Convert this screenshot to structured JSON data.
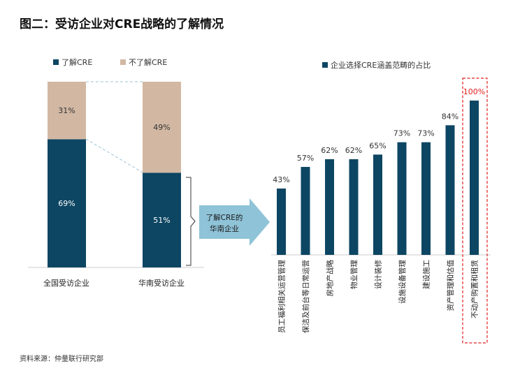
{
  "title": "图二：受访企业对CRE战略的了解情况",
  "source": "资料来源：仲量联行研究部",
  "colors": {
    "dark": "#0d4663",
    "light": "#d2b8a3",
    "arrow": "#8fc3d8",
    "highlight": "#e02020"
  },
  "chart_data": [
    {
      "type": "bar",
      "stacked": true,
      "categories": [
        "全国受访企业",
        "华南受访企业"
      ],
      "series": [
        {
          "name": "了解CRE",
          "values": [
            69,
            51
          ],
          "labels": [
            "69%",
            "51%"
          ]
        },
        {
          "name": "不了解CRE",
          "values": [
            31,
            49
          ],
          "labels": [
            "31%",
            "49%"
          ]
        }
      ],
      "ylim": [
        0,
        100
      ],
      "legend": "top"
    },
    {
      "type": "bar",
      "categories": [
        "员工福利相关运营管理",
        "保洁及前台等日常运营",
        "房地产战略",
        "物业管理",
        "设计装修",
        "设施设备管理",
        "建设施工",
        "资产管理和估值",
        "不动产购置和租赁"
      ],
      "series": [
        {
          "name": "企业选择CRE涵盖范畴的占比",
          "values": [
            43,
            57,
            62,
            62,
            65,
            73,
            73,
            84,
            100
          ],
          "labels": [
            "43%",
            "57%",
            "62%",
            "62%",
            "65%",
            "73%",
            "73%",
            "84%",
            "100%"
          ]
        }
      ],
      "ylim": [
        0,
        100
      ],
      "legend": "top",
      "highlighted_category": "不动产购置和租赁"
    }
  ],
  "arrow_label": [
    "了解CRE的",
    "华南企业"
  ]
}
